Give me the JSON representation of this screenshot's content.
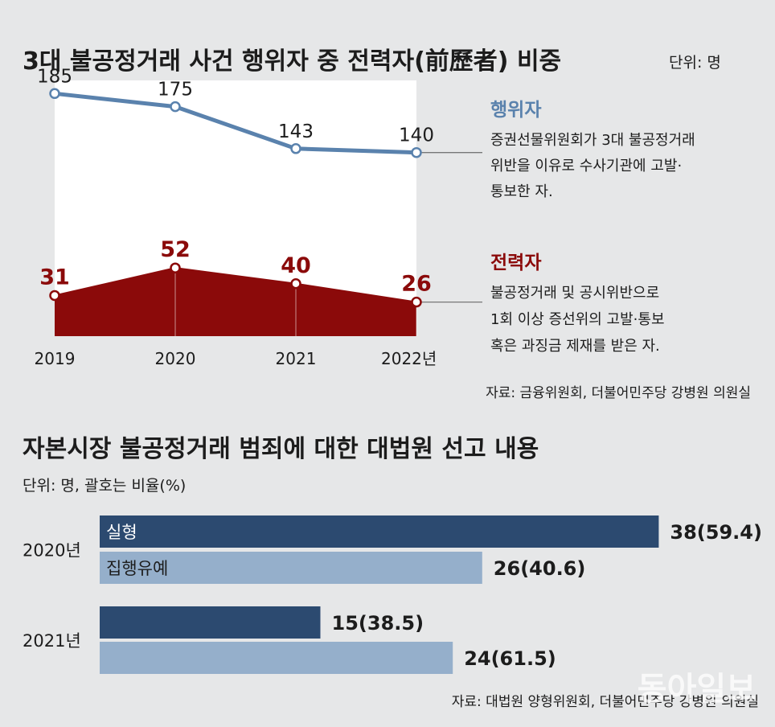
{
  "chart_data": [
    {
      "type": "area",
      "title": "3대 불공정거래 사건 행위자 중 전력자(前歷者) 비중",
      "unit": "단위: 명",
      "x": [
        "2019",
        "2020",
        "2021",
        "2022년"
      ],
      "series": [
        {
          "name": "행위자",
          "values": [
            185,
            175,
            143,
            140
          ],
          "value_labels": [
            "185",
            "175",
            "143",
            "140"
          ],
          "color": "#5a82ad",
          "description": [
            "증권선물위원회가 3대 불공정거래",
            "위반을 이유로 수사기관에 고발·",
            "통보한 자."
          ]
        },
        {
          "name": "전력자",
          "values": [
            31,
            52,
            40,
            26
          ],
          "value_labels": [
            "31",
            "52",
            "40",
            "26"
          ],
          "color": "#8b0a0a",
          "description": [
            "불공정거래 및 공시위반으로",
            "1회 이상 증선위의 고발·통보",
            "혹은 과징금 제재를 받은 자."
          ]
        }
      ],
      "ylim": [
        0,
        195
      ],
      "source": "자료: 금융위원회, 더불어민주당 강병원 의원실"
    },
    {
      "type": "bar",
      "orientation": "horizontal",
      "title": "자본시장 불공정거래 범죄에 대한 대법원 선고 내용",
      "unit": "단위: 명, 괄호는 비율(%)",
      "categories": [
        "2020년",
        "2021년"
      ],
      "series": [
        {
          "name": "실형",
          "values": [
            38,
            15
          ],
          "value_labels": [
            "38(59.4)",
            "15(38.5)"
          ],
          "color": "#2c4a70"
        },
        {
          "name": "집행유예",
          "values": [
            26,
            24
          ],
          "value_labels": [
            "26(40.6)",
            "24(61.5)"
          ],
          "color": "#95afcb"
        }
      ],
      "xlim": [
        0,
        40
      ],
      "source": "자료: 대법원 양형위원회, 더불어민주당 강병원 의원실"
    }
  ],
  "colors": {
    "background": "#e6e7e8",
    "plot_background": "#ffffff",
    "leader_line": "#777777",
    "text": "#1c1c1c",
    "watermark": "#ffffff"
  },
  "watermark": "동아일보"
}
